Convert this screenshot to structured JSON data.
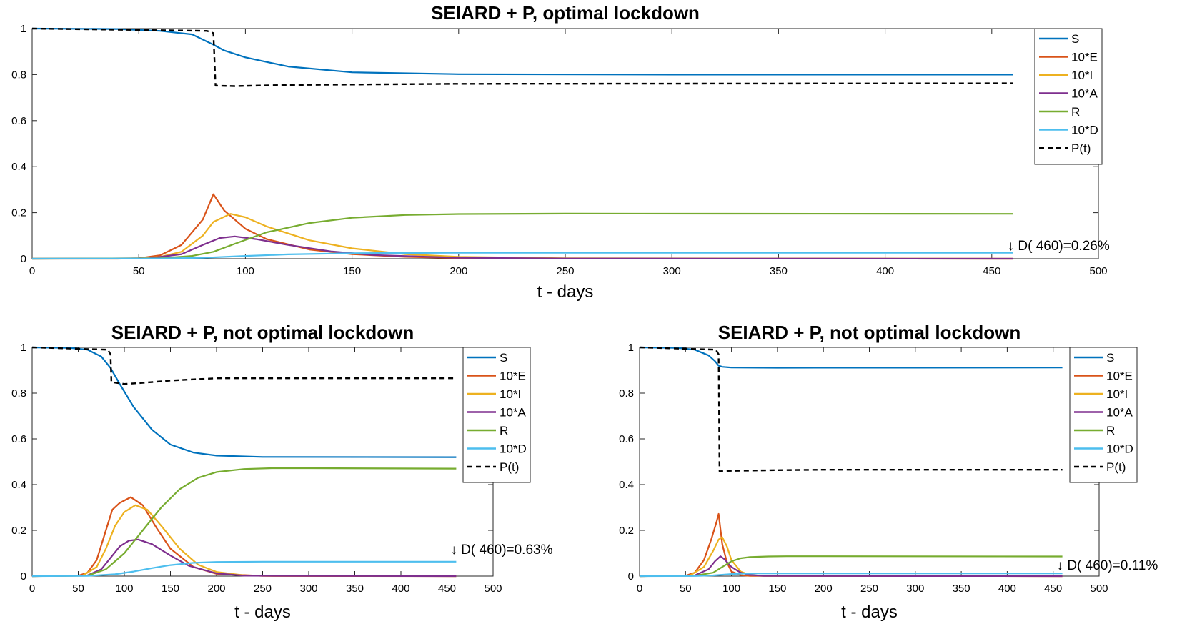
{
  "chart_data": [
    {
      "type": "line",
      "title": "SEIARD + P, optimal lockdown",
      "xlabel": "t - days",
      "ylabel": "",
      "xlim": [
        0,
        500
      ],
      "ylim": [
        0,
        1
      ],
      "xticks": [
        "0",
        "50",
        "100",
        "150",
        "200",
        "250",
        "300",
        "350",
        "400",
        "450",
        "500"
      ],
      "yticks": [
        "0",
        "0.2",
        "0.4",
        "0.6",
        "0.8",
        "1"
      ],
      "legend_position": "top-right",
      "annotation": "↓ D( 460)=0.26%",
      "series": [
        {
          "name": "S",
          "color": "#0072BD",
          "style": "solid",
          "x": [
            0,
            40,
            60,
            75,
            85,
            90,
            100,
            120,
            150,
            200,
            300,
            460
          ],
          "y": [
            1,
            0.998,
            0.99,
            0.975,
            0.93,
            0.905,
            0.875,
            0.835,
            0.81,
            0.802,
            0.8,
            0.8
          ]
        },
        {
          "name": "10*E",
          "color": "#D95319",
          "style": "solid",
          "x": [
            0,
            40,
            50,
            60,
            70,
            80,
            85,
            90,
            100,
            110,
            130,
            150,
            175,
            200,
            250,
            460
          ],
          "y": [
            0,
            0,
            0.002,
            0.015,
            0.06,
            0.17,
            0.28,
            0.21,
            0.13,
            0.085,
            0.04,
            0.02,
            0.008,
            0.003,
            0.001,
            0
          ]
        },
        {
          "name": "10*I",
          "color": "#EDB120",
          "style": "solid",
          "x": [
            0,
            50,
            60,
            70,
            80,
            85,
            93,
            100,
            110,
            130,
            150,
            175,
            200,
            250,
            460
          ],
          "y": [
            0,
            0.001,
            0.008,
            0.03,
            0.1,
            0.16,
            0.195,
            0.18,
            0.14,
            0.08,
            0.045,
            0.02,
            0.008,
            0.002,
            0
          ]
        },
        {
          "name": "10*A",
          "color": "#7E2F8E",
          "style": "solid",
          "x": [
            0,
            55,
            70,
            80,
            88,
            95,
            105,
            120,
            140,
            160,
            200,
            250,
            460
          ],
          "y": [
            0,
            0.002,
            0.02,
            0.06,
            0.09,
            0.097,
            0.085,
            0.06,
            0.032,
            0.016,
            0.004,
            0.001,
            0
          ]
        },
        {
          "name": "R",
          "color": "#77AC30",
          "style": "solid",
          "x": [
            0,
            60,
            75,
            85,
            95,
            110,
            130,
            150,
            175,
            200,
            250,
            460
          ],
          "y": [
            0,
            0.002,
            0.012,
            0.03,
            0.065,
            0.115,
            0.155,
            0.178,
            0.19,
            0.194,
            0.196,
            0.195
          ]
        },
        {
          "name": "10*D",
          "color": "#4DBEEE",
          "style": "solid",
          "x": [
            0,
            60,
            80,
            100,
            120,
            150,
            200,
            460
          ],
          "y": [
            0,
            0.001,
            0.004,
            0.012,
            0.019,
            0.024,
            0.026,
            0.026
          ]
        },
        {
          "name": "P(t)",
          "color": "#000000",
          "style": "dashed",
          "x": [
            0,
            82,
            85,
            86,
            95,
            120,
            200,
            460
          ],
          "y": [
            1,
            0.99,
            0.98,
            0.752,
            0.75,
            0.755,
            0.76,
            0.762
          ]
        }
      ]
    },
    {
      "type": "line",
      "title": "SEIARD + P, not optimal lockdown",
      "xlabel": "t - days",
      "ylabel": "",
      "xlim": [
        0,
        500
      ],
      "ylim": [
        0,
        1
      ],
      "xticks": [
        "0",
        "50",
        "100",
        "150",
        "200",
        "250",
        "300",
        "350",
        "400",
        "450",
        "500"
      ],
      "yticks": [
        "0",
        "0.2",
        "0.4",
        "0.6",
        "0.8",
        "1"
      ],
      "legend_position": "top-right",
      "annotation": "↓ D( 460)=0.63%",
      "series": [
        {
          "name": "S",
          "color": "#0072BD",
          "style": "solid",
          "x": [
            0,
            40,
            60,
            75,
            85,
            95,
            110,
            130,
            150,
            175,
            200,
            250,
            460
          ],
          "y": [
            1,
            0.998,
            0.99,
            0.96,
            0.91,
            0.84,
            0.74,
            0.64,
            0.575,
            0.54,
            0.527,
            0.521,
            0.52
          ]
        },
        {
          "name": "10*E",
          "color": "#D95319",
          "style": "solid",
          "x": [
            0,
            50,
            60,
            70,
            80,
            87,
            95,
            107,
            120,
            135,
            150,
            175,
            200,
            250,
            460
          ],
          "y": [
            0,
            0.002,
            0.015,
            0.07,
            0.2,
            0.29,
            0.32,
            0.345,
            0.31,
            0.21,
            0.12,
            0.04,
            0.01,
            0.001,
            0
          ]
        },
        {
          "name": "10*I",
          "color": "#EDB120",
          "style": "solid",
          "x": [
            0,
            55,
            70,
            80,
            90,
            100,
            112,
            125,
            140,
            160,
            180,
            200,
            230,
            460
          ],
          "y": [
            0,
            0.003,
            0.04,
            0.12,
            0.22,
            0.28,
            0.31,
            0.29,
            0.22,
            0.12,
            0.05,
            0.018,
            0.003,
            0
          ]
        },
        {
          "name": "10*A",
          "color": "#7E2F8E",
          "style": "solid",
          "x": [
            0,
            60,
            75,
            85,
            95,
            105,
            115,
            130,
            150,
            170,
            200,
            230,
            460
          ],
          "y": [
            0,
            0.003,
            0.03,
            0.08,
            0.13,
            0.155,
            0.16,
            0.14,
            0.09,
            0.045,
            0.012,
            0.002,
            0
          ]
        },
        {
          "name": "R",
          "color": "#77AC30",
          "style": "solid",
          "x": [
            0,
            60,
            80,
            100,
            120,
            140,
            160,
            180,
            200,
            230,
            260,
            300,
            460
          ],
          "y": [
            0,
            0.002,
            0.03,
            0.1,
            0.2,
            0.3,
            0.38,
            0.43,
            0.455,
            0.468,
            0.472,
            0.472,
            0.47
          ]
        },
        {
          "name": "10*D",
          "color": "#4DBEEE",
          "style": "solid",
          "x": [
            0,
            60,
            90,
            110,
            130,
            150,
            175,
            200,
            250,
            460
          ],
          "y": [
            0,
            0.001,
            0.008,
            0.02,
            0.035,
            0.048,
            0.058,
            0.062,
            0.063,
            0.063
          ]
        },
        {
          "name": "P(t)",
          "color": "#000000",
          "style": "dashed",
          "x": [
            0,
            82,
            85,
            86,
            100,
            120,
            150,
            200,
            460
          ],
          "y": [
            1,
            0.99,
            0.97,
            0.848,
            0.84,
            0.845,
            0.855,
            0.865,
            0.865
          ]
        }
      ]
    },
    {
      "type": "line",
      "title": "SEIARD + P, not optimal lockdown",
      "xlabel": "t - days",
      "ylabel": "",
      "xlim": [
        0,
        500
      ],
      "ylim": [
        0,
        1
      ],
      "xticks": [
        "0",
        "50",
        "100",
        "150",
        "200",
        "250",
        "300",
        "350",
        "400",
        "450",
        "500"
      ],
      "yticks": [
        "0",
        "0.2",
        "0.4",
        "0.6",
        "0.8",
        "1"
      ],
      "legend_position": "top-right",
      "annotation": "↓ D( 460)=0.11%",
      "series": [
        {
          "name": "S",
          "color": "#0072BD",
          "style": "solid",
          "x": [
            0,
            40,
            60,
            75,
            82,
            86,
            90,
            100,
            150,
            460
          ],
          "y": [
            1,
            0.998,
            0.99,
            0.965,
            0.94,
            0.92,
            0.915,
            0.912,
            0.911,
            0.912
          ]
        },
        {
          "name": "10*E",
          "color": "#D95319",
          "style": "solid",
          "x": [
            0,
            50,
            60,
            70,
            78,
            84,
            86,
            90,
            95,
            100,
            110,
            120,
            460
          ],
          "y": [
            0,
            0.002,
            0.015,
            0.07,
            0.16,
            0.24,
            0.272,
            0.14,
            0.06,
            0.02,
            0.004,
            0.001,
            0
          ]
        },
        {
          "name": "10*I",
          "color": "#EDB120",
          "style": "solid",
          "x": [
            0,
            55,
            70,
            80,
            86,
            90,
            95,
            100,
            110,
            120,
            135,
            460
          ],
          "y": [
            0,
            0.003,
            0.04,
            0.11,
            0.16,
            0.17,
            0.13,
            0.07,
            0.02,
            0.005,
            0.001,
            0
          ]
        },
        {
          "name": "10*A",
          "color": "#7E2F8E",
          "style": "solid",
          "x": [
            0,
            60,
            75,
            82,
            88,
            92,
            100,
            110,
            120,
            135,
            460
          ],
          "y": [
            0,
            0.003,
            0.03,
            0.065,
            0.087,
            0.075,
            0.04,
            0.015,
            0.005,
            0.001,
            0
          ]
        },
        {
          "name": "R",
          "color": "#77AC30",
          "style": "solid",
          "x": [
            0,
            60,
            80,
            90,
            100,
            110,
            120,
            140,
            160,
            200,
            460
          ],
          "y": [
            0,
            0.002,
            0.015,
            0.04,
            0.065,
            0.078,
            0.083,
            0.086,
            0.087,
            0.087,
            0.086
          ]
        },
        {
          "name": "10*D",
          "color": "#4DBEEE",
          "style": "solid",
          "x": [
            0,
            60,
            80,
            90,
            100,
            110,
            130,
            460
          ],
          "y": [
            0,
            0.0005,
            0.003,
            0.006,
            0.009,
            0.011,
            0.012,
            0.012
          ]
        },
        {
          "name": "P(t)",
          "color": "#000000",
          "style": "dashed",
          "x": [
            0,
            83,
            86,
            87,
            95,
            150,
            200,
            460
          ],
          "y": [
            1,
            0.99,
            0.97,
            0.458,
            0.46,
            0.463,
            0.465,
            0.465
          ]
        }
      ]
    }
  ]
}
